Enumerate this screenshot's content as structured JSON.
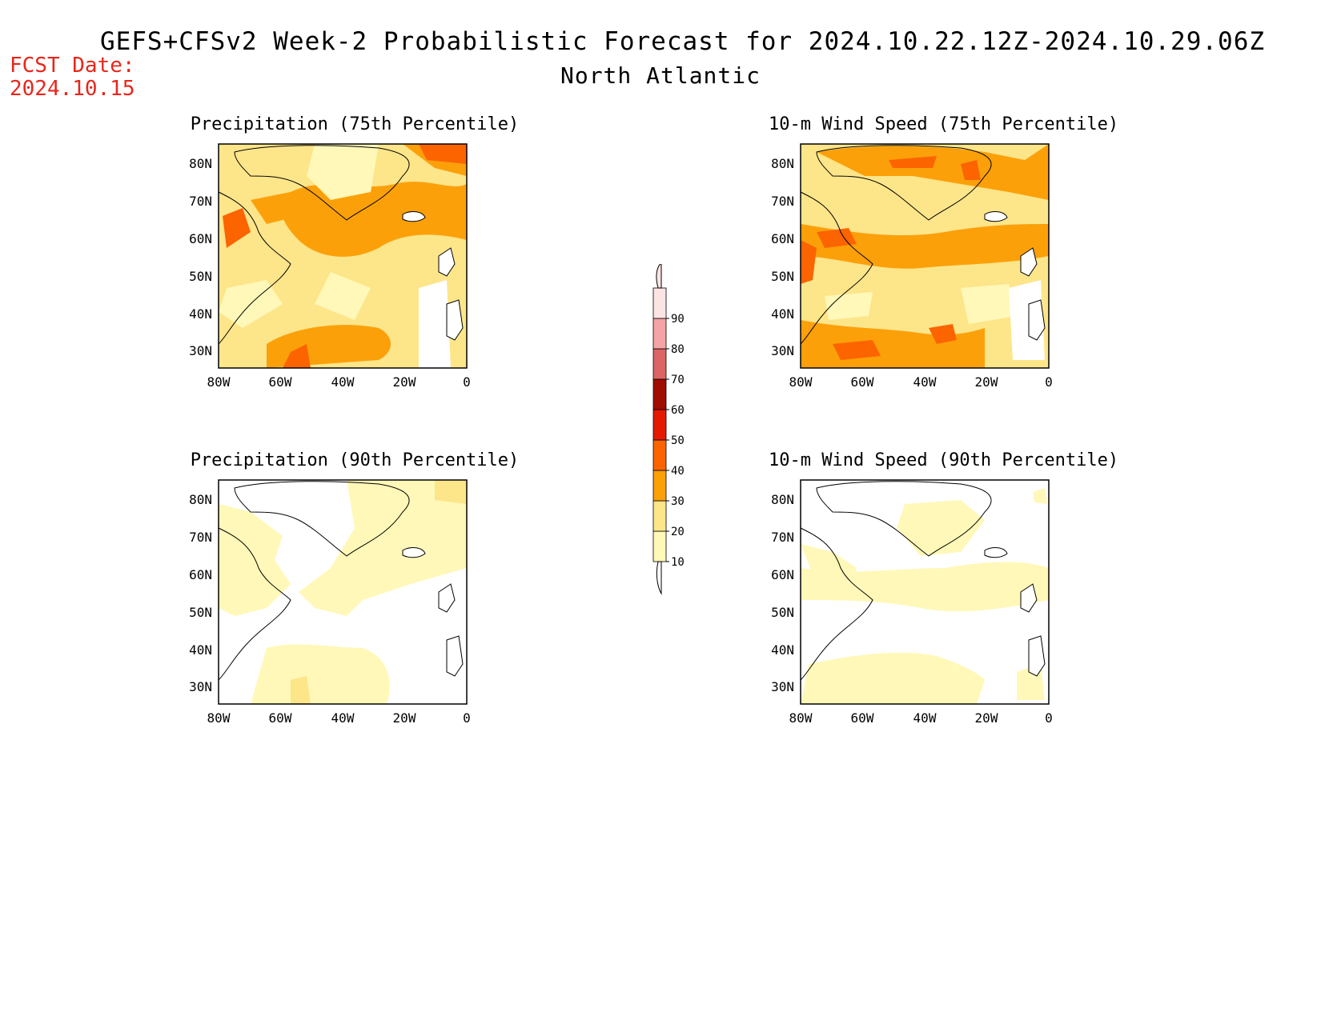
{
  "header": {
    "title": "GEFS+CFSv2 Week-2 Probabilistic Forecast for 2024.10.22.12Z-2024.10.29.06Z",
    "region": "North Atlantic",
    "fcst_label": "FCST Date:",
    "fcst_date": "2024.10.15"
  },
  "panels": [
    {
      "id": "precip75",
      "title": "Precipitation (75th Percentile)"
    },
    {
      "id": "wind75",
      "title": "10-m Wind Speed (75th Percentile)"
    },
    {
      "id": "precip90",
      "title": "Precipitation (90th Percentile)"
    },
    {
      "id": "wind90",
      "title": "10-m Wind Speed (90th Percentile)"
    }
  ],
  "axes": {
    "lat_labels": [
      "80N",
      "70N",
      "60N",
      "50N",
      "40N",
      "30N"
    ],
    "lon_labels": [
      "80W",
      "60W",
      "40W",
      "20W",
      "0"
    ]
  },
  "colorbar": {
    "levels": [
      "10",
      "20",
      "30",
      "40",
      "50",
      "60",
      "70",
      "80",
      "90"
    ],
    "colors": [
      "#fff8b8",
      "#fde58a",
      "#fca00a",
      "#fc6400",
      "#e41a00",
      "#a00c00",
      "#dc6464",
      "#f4a4a4",
      "#fde4e4"
    ]
  }
}
